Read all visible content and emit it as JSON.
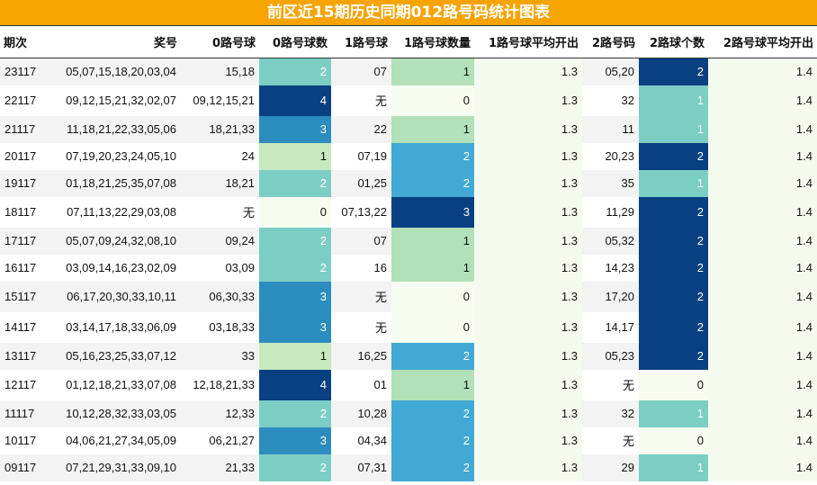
{
  "title": "前区近15期历史同期012路号码统计图表",
  "headers": [
    "期次",
    "奖号",
    "0路号球",
    "0路号球数",
    "1路号球",
    "1路号球数量",
    "1路号球平均开出",
    "2路号码",
    "2路球个数",
    "2路号球平均开出"
  ],
  "rows": [
    [
      "23117",
      "05,07,15,18,20,03,04",
      "15,18",
      "2",
      "07",
      "1",
      "1.3",
      "05,20",
      "2",
      "1.4"
    ],
    [
      "22117",
      "09,12,15,21,32,02,07",
      "09,12,15,21",
      "4",
      "无",
      "0",
      "1.3",
      "32",
      "1",
      "1.4"
    ],
    [
      "21117",
      "11,18,21,22,33,05,06",
      "18,21,33",
      "3",
      "22",
      "1",
      "1.3",
      "11",
      "1",
      "1.4"
    ],
    [
      "20117",
      "07,19,20,23,24,05,10",
      "24",
      "1",
      "07,19",
      "2",
      "1.3",
      "20,23",
      "2",
      "1.4"
    ],
    [
      "19117",
      "01,18,21,25,35,07,08",
      "18,21",
      "2",
      "01,25",
      "2",
      "1.3",
      "35",
      "1",
      "1.4"
    ],
    [
      "18117",
      "07,11,13,22,29,03,08",
      "无",
      "0",
      "07,13,22",
      "3",
      "1.3",
      "11,29",
      "2",
      "1.4"
    ],
    [
      "17117",
      "05,07,09,24,32,08,10",
      "09,24",
      "2",
      "07",
      "1",
      "1.3",
      "05,32",
      "2",
      "1.4"
    ],
    [
      "16117",
      "03,09,14,16,23,02,09",
      "03,09",
      "2",
      "16",
      "1",
      "1.3",
      "14,23",
      "2",
      "1.4"
    ],
    [
      "15117",
      "06,17,20,30,33,10,11",
      "06,30,33",
      "3",
      "无",
      "0",
      "1.3",
      "17,20",
      "2",
      "1.4"
    ],
    [
      "14117",
      "03,14,17,18,33,06,09",
      "03,18,33",
      "3",
      "无",
      "0",
      "1.3",
      "14,17",
      "2",
      "1.4"
    ],
    [
      "13117",
      "05,16,23,25,33,07,12",
      "33",
      "1",
      "16,25",
      "2",
      "1.3",
      "05,23",
      "2",
      "1.4"
    ],
    [
      "12117",
      "01,12,18,21,33,07,08",
      "12,18,21,33",
      "4",
      "01",
      "1",
      "1.3",
      "无",
      "0",
      "1.4"
    ],
    [
      "11117",
      "10,12,28,32,33,03,05",
      "12,33",
      "2",
      "10,28",
      "2",
      "1.3",
      "32",
      "1",
      "1.4"
    ],
    [
      "10117",
      "04,06,21,27,34,05,09",
      "06,21,27",
      "3",
      "04,34",
      "2",
      "1.3",
      "无",
      "0",
      "1.4"
    ],
    [
      "09117",
      "07,21,29,31,33,09,10",
      "21,33",
      "2",
      "07,31",
      "2",
      "1.3",
      "29",
      "1",
      "1.4"
    ]
  ]
}
